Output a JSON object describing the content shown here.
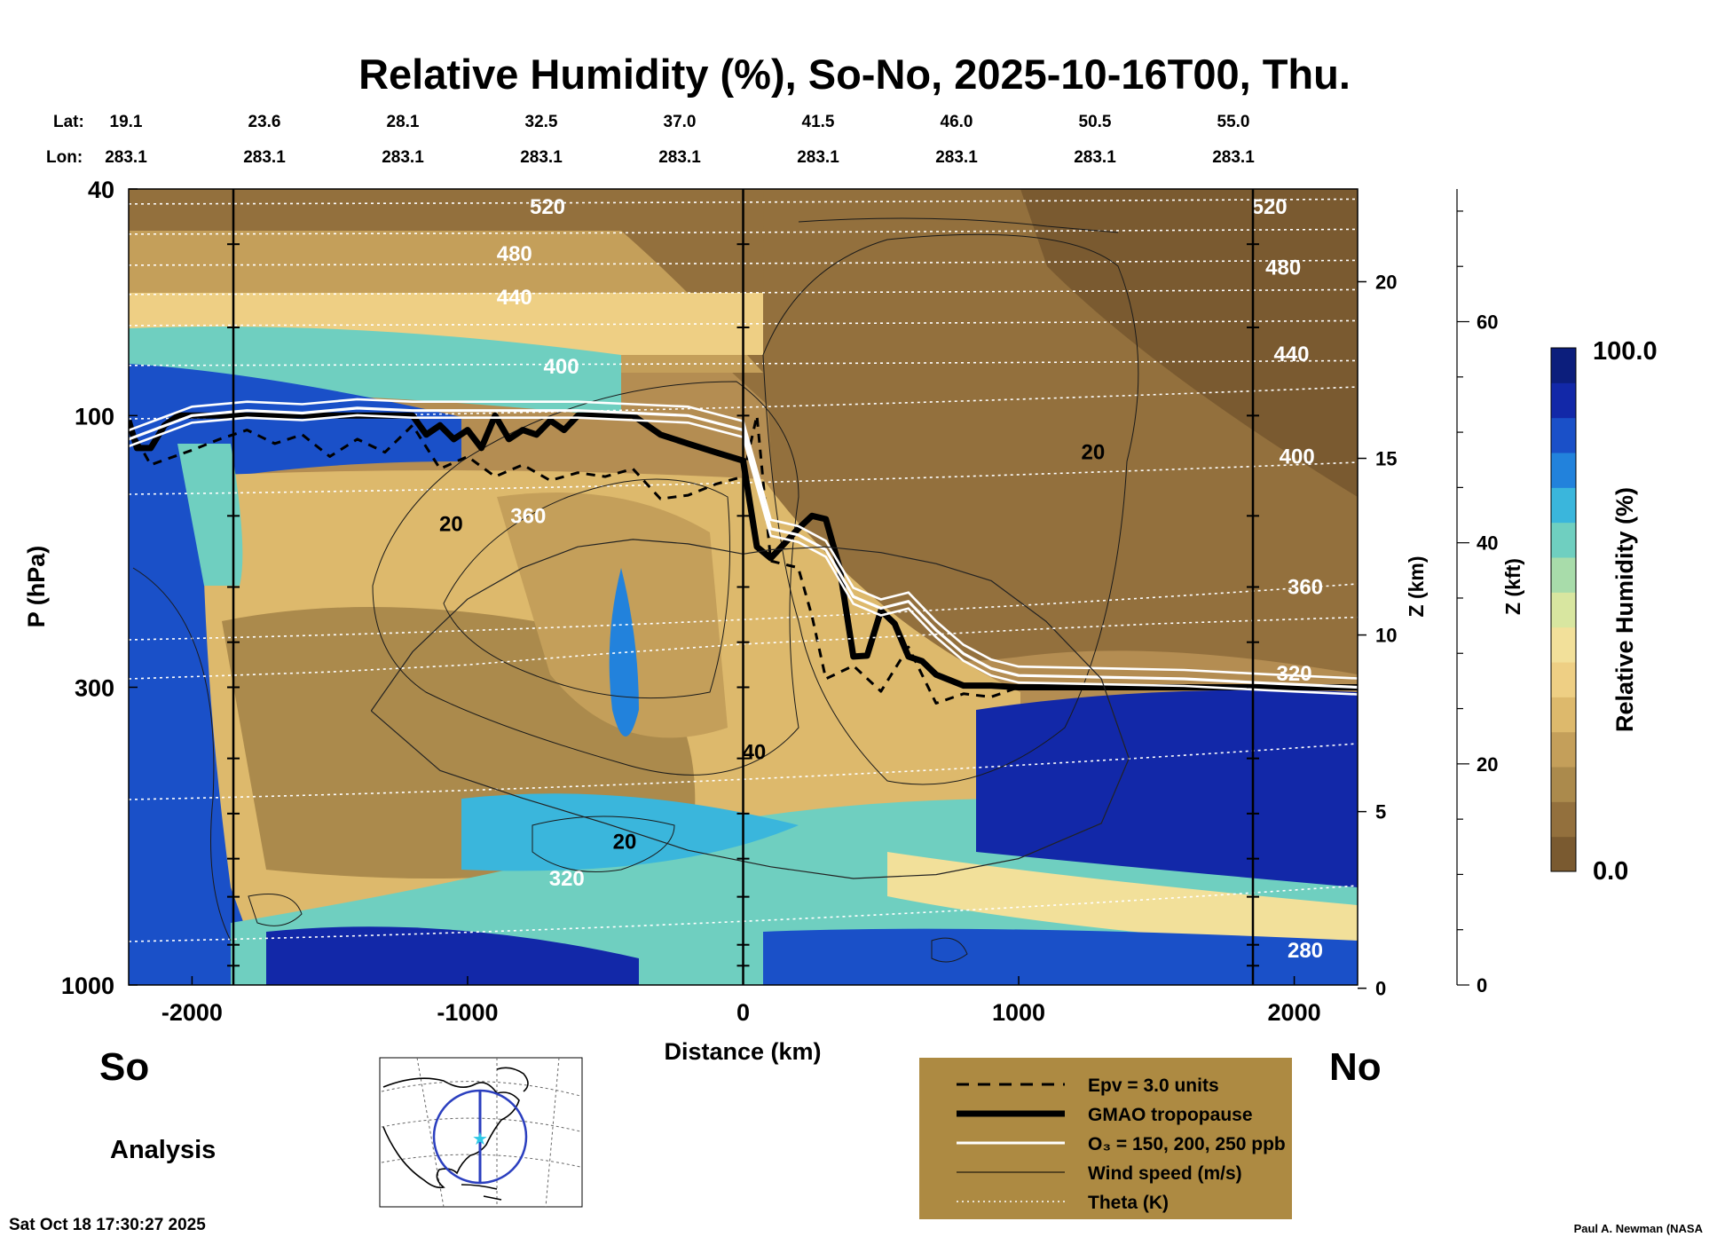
{
  "chart_data": {
    "type": "heatmap",
    "title": "Relative Humidity (%), So-No, 2025-10-16T00, Thu.",
    "xlabel": "Distance (km)",
    "ylabel": "P (hPa)",
    "xlim": [
      -2230,
      2230
    ],
    "ylim": [
      1000,
      40
    ],
    "y_scale": "log",
    "x_ticks": [
      -2000,
      -1000,
      0,
      1000,
      2000
    ],
    "y_ticks": [
      40,
      100,
      300,
      1000
    ],
    "z_km_label": "Z (km)",
    "z_km_ticks": [
      0,
      5,
      10,
      15,
      20
    ],
    "z_kft_label": "Z (kft)",
    "z_kft_ticks": [
      0,
      20,
      40,
      60
    ],
    "lat_label": "Lat:",
    "lon_label": "Lon:",
    "lat_ticks": [
      "19.1",
      "23.6",
      "28.1",
      "32.5",
      "37.0",
      "41.5",
      "46.0",
      "50.5",
      "55.0"
    ],
    "lon_ticks": [
      "283.1",
      "283.1",
      "283.1",
      "283.1",
      "283.1",
      "283.1",
      "283.1",
      "283.1",
      "283.1"
    ],
    "colorbar": {
      "label": "Relative Humidity (%)",
      "max_label": "100.0",
      "min_label": "0.0",
      "colors": [
        "#7a5a30",
        "#93703d",
        "#ab8a4c",
        "#c49f5a",
        "#ddb96c",
        "#eecf84",
        "#f2e09a",
        "#d8e6a0",
        "#a8dcaa",
        "#6fcfc0",
        "#3ab6dc",
        "#2282dc",
        "#1a50c8",
        "#1228a8",
        "#0c1e7c"
      ]
    },
    "corner_labels": {
      "left": "So",
      "right": "No",
      "analysis": "Analysis"
    },
    "theta_labels": [
      {
        "text": "520",
        "x": -710,
        "p": 43
      },
      {
        "text": "480",
        "x": -830,
        "p": 52
      },
      {
        "text": "440",
        "x": -830,
        "p": 62
      },
      {
        "text": "400",
        "x": -660,
        "p": 82
      },
      {
        "text": "360",
        "x": -780,
        "p": 150
      },
      {
        "text": "320",
        "x": -640,
        "p": 650
      },
      {
        "text": "520",
        "x": 1910,
        "p": 43
      },
      {
        "text": "480",
        "x": 1960,
        "p": 55
      },
      {
        "text": "440",
        "x": 1990,
        "p": 78
      },
      {
        "text": "400",
        "x": 2010,
        "p": 118
      },
      {
        "text": "360",
        "x": 2040,
        "p": 200
      },
      {
        "text": "320",
        "x": 2000,
        "p": 284
      },
      {
        "text": "280",
        "x": 2040,
        "p": 870
      }
    ],
    "wind_labels": [
      {
        "text": "20",
        "x": -1060,
        "p": 155
      },
      {
        "text": "20",
        "x": -430,
        "p": 560
      },
      {
        "text": "40",
        "x": 40,
        "p": 390
      },
      {
        "text": "20",
        "x": 1270,
        "p": 116
      }
    ],
    "series": [
      {
        "name": "Epv = 3.0 units",
        "x": [
          -2230,
          -2150,
          -2000,
          -1900,
          -1800,
          -1700,
          -1600,
          -1500,
          -1400,
          -1300,
          -1200,
          -1100,
          -1000,
          -900,
          -800,
          -700,
          -600,
          -500,
          -400,
          -300,
          -200,
          -100,
          0,
          50,
          100,
          200,
          250,
          300,
          400,
          500,
          600,
          700,
          800,
          900,
          1000
        ],
        "p": [
          104,
          122,
          115,
          110,
          106,
          112,
          108,
          118,
          110,
          116,
          104,
          124,
          118,
          128,
          122,
          130,
          126,
          128,
          124,
          140,
          138,
          132,
          128,
          100,
          180,
          185,
          225,
          290,
          275,
          305,
          255,
          320,
          308,
          312,
          300
        ]
      },
      {
        "name": "GMAO tropopause",
        "x": [
          -2230,
          -2200,
          -2150,
          -2100,
          -2050,
          -2000,
          -1900,
          -1800,
          -1700,
          -1600,
          -1500,
          -1400,
          -1300,
          -1200,
          -1150,
          -1100,
          -1050,
          -1000,
          -950,
          -900,
          -850,
          -800,
          -750,
          -700,
          -650,
          -600,
          -500,
          -400,
          -300,
          -200,
          -100,
          0,
          50,
          100,
          200,
          250,
          300,
          350,
          400,
          450,
          500,
          550,
          600,
          650,
          700,
          800,
          900,
          1000,
          1200,
          1500,
          1800,
          2000,
          2230
        ],
        "p": [
          102,
          114,
          114,
          104,
          100,
          100,
          100,
          100,
          100,
          100,
          100,
          100,
          100,
          100,
          108,
          104,
          110,
          106,
          114,
          100,
          110,
          106,
          108,
          102,
          106,
          100,
          100,
          100,
          108,
          112,
          116,
          120,
          170,
          178,
          158,
          150,
          152,
          185,
          265,
          264,
          220,
          232,
          265,
          270,
          285,
          298,
          298,
          300,
          300,
          300,
          300,
          300,
          300
        ]
      },
      {
        "name": "O₃ = 150, 200, 250 ppb",
        "x": [
          -2230,
          -2000,
          -1800,
          -1600,
          -1400,
          -1200,
          -1000,
          -800,
          -600,
          -400,
          -200,
          0,
          100,
          200,
          300,
          400,
          500,
          600,
          700,
          800,
          900,
          1000,
          1300,
          1600,
          1900,
          2230
        ],
        "p": [
          110,
          100,
          98,
          99,
          97,
          98,
          98,
          98,
          98,
          99,
          100,
          106,
          158,
          162,
          172,
          208,
          218,
          212,
          238,
          262,
          278,
          286,
          288,
          290,
          295,
          300
        ]
      },
      {
        "name": "Wind speed (m/s)",
        "x": [
          -1350,
          -1200,
          -1000,
          -800,
          -600,
          -400,
          -200,
          0,
          100,
          300,
          500,
          700,
          900,
          1100,
          1300,
          1400,
          1300,
          1000,
          700,
          400,
          100,
          -200,
          -500,
          -800,
          -1100,
          -1350
        ],
        "p": [
          330,
          260,
          210,
          185,
          170,
          165,
          168,
          175,
          172,
          170,
          174,
          182,
          195,
          230,
          290,
          400,
          520,
          600,
          640,
          650,
          620,
          580,
          520,
          470,
          420,
          330
        ]
      },
      {
        "name": "Theta (K)",
        "x": [
          -2230,
          -1500,
          -1000,
          -500,
          0,
          500,
          1000,
          1500,
          2230
        ],
        "p": [
          290,
          282,
          274,
          262,
          252,
          245,
          238,
          232,
          226
        ]
      }
    ]
  },
  "legend": {
    "entries": [
      {
        "style": "dashed",
        "label": "Epv = 3.0 units"
      },
      {
        "style": "thick",
        "label": "GMAO tropopause"
      },
      {
        "style": "white",
        "label": "O₃ = 150, 200, 250 ppb"
      },
      {
        "style": "thin",
        "label": "Wind speed (m/s)"
      },
      {
        "style": "dotted",
        "label": "Theta (K)"
      }
    ]
  },
  "footer": {
    "timestamp": "Sat Oct 18 17:30:27 2025",
    "credit": "Paul A. Newman (NASA"
  }
}
